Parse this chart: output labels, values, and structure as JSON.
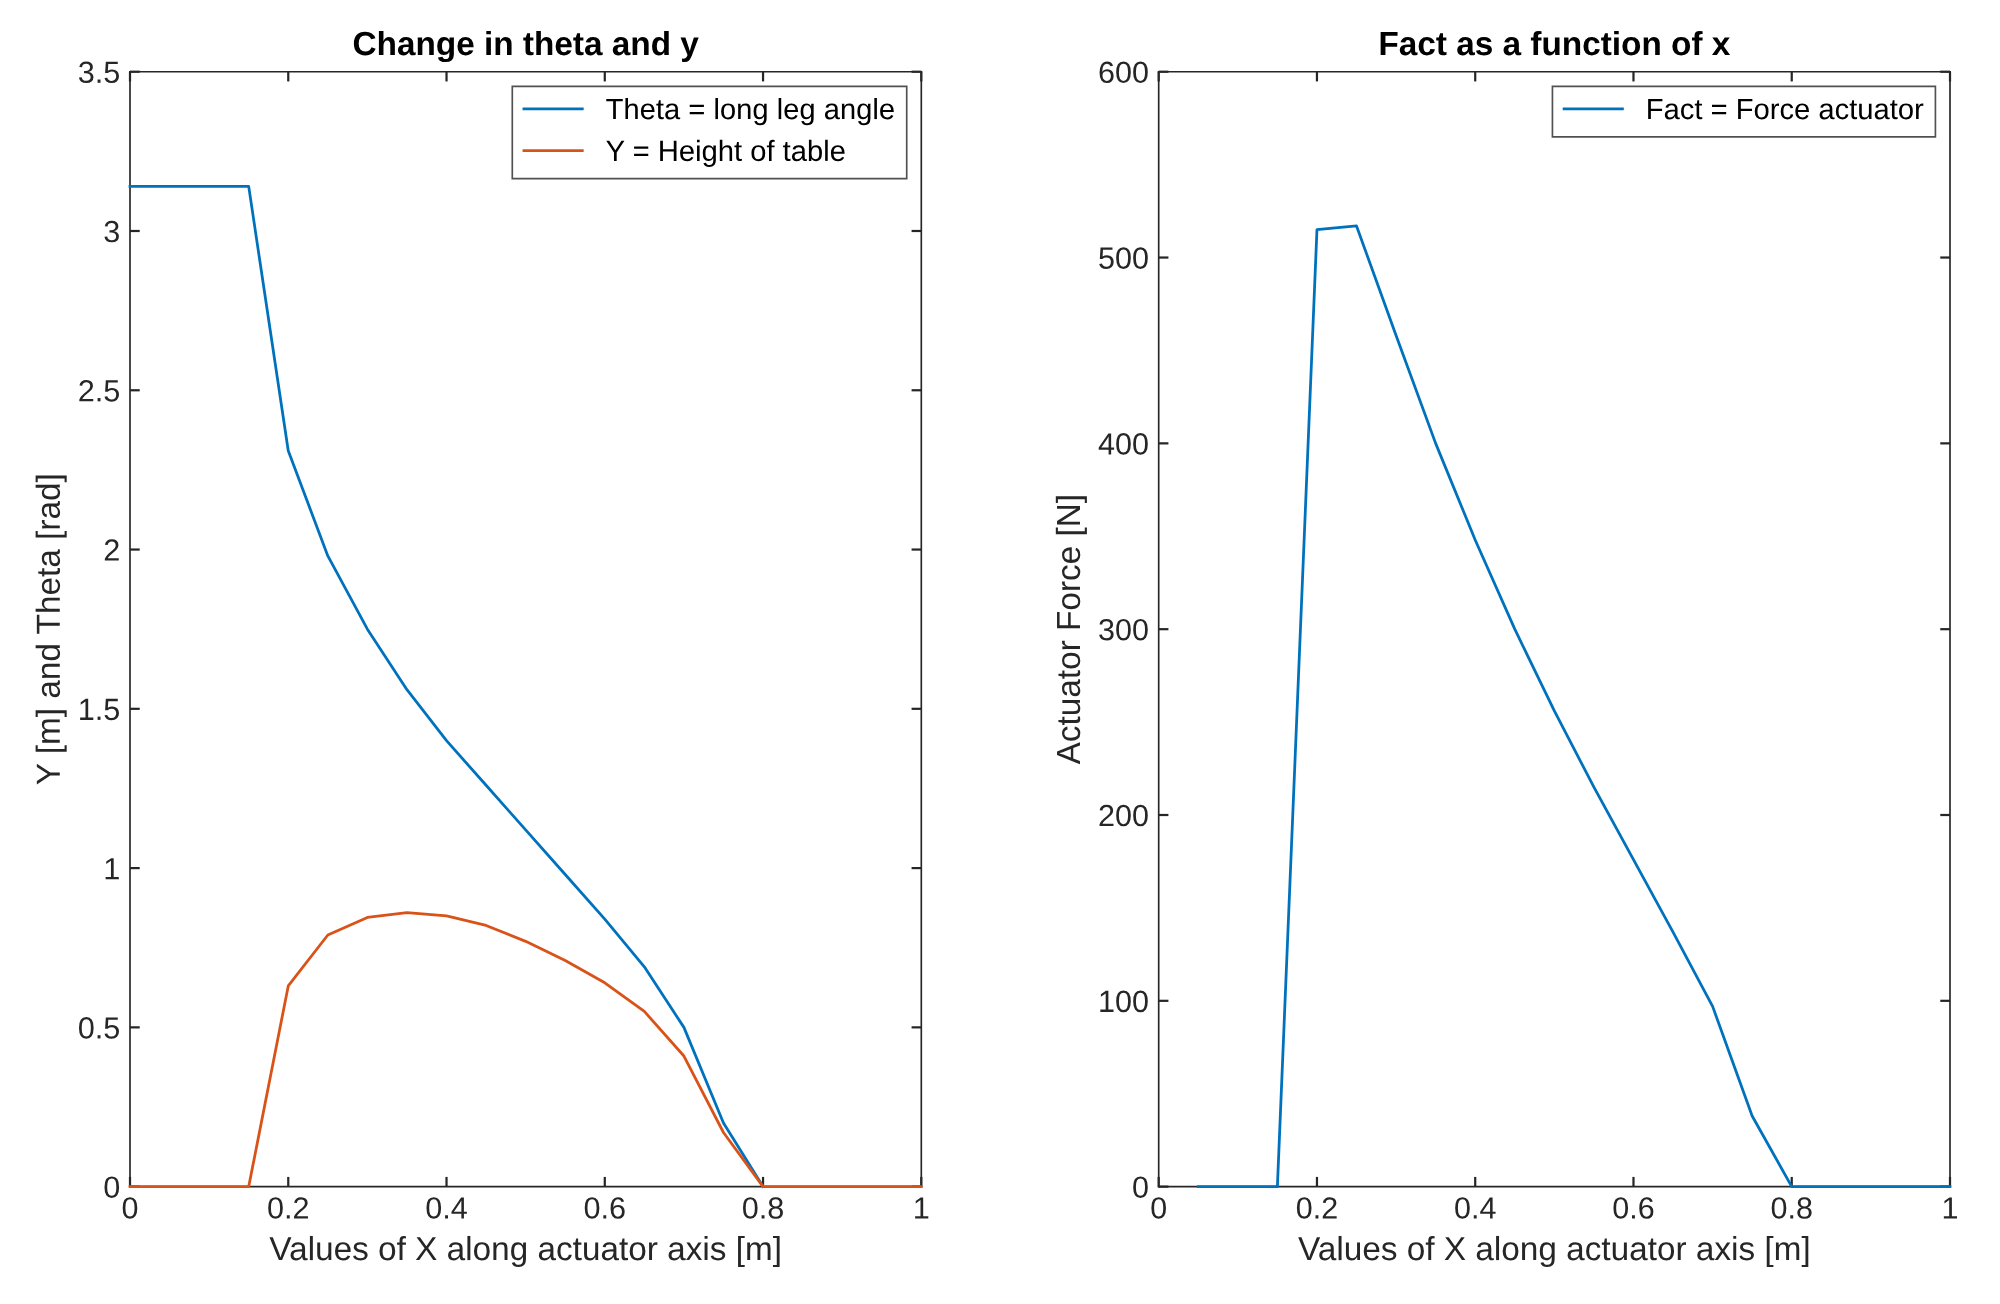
{
  "chart_data": [
    {
      "type": "line",
      "title": "Change in theta and y",
      "xlabel": "Values of X along actuator axis [m]",
      "ylabel": "Y [m] and Theta [rad]",
      "x": [
        0,
        0.05,
        0.1,
        0.15,
        0.2,
        0.25,
        0.3,
        0.35,
        0.4,
        0.45,
        0.5,
        0.55,
        0.6,
        0.65,
        0.7,
        0.75,
        0.8,
        0.85,
        0.9,
        0.95,
        1
      ],
      "series": [
        {
          "name": "Theta = long leg angle",
          "color": "#0072bd",
          "values": [
            3.14,
            3.14,
            3.14,
            3.14,
            2.31,
            1.98,
            1.75,
            1.56,
            1.4,
            1.26,
            1.12,
            0.98,
            0.84,
            0.69,
            0.5,
            0.2,
            0,
            null,
            null,
            null,
            null
          ]
        },
        {
          "name": "Y = Height of table",
          "color": "#d95319",
          "values": [
            0,
            0,
            0,
            0,
            0.63,
            0.79,
            0.845,
            0.86,
            0.85,
            0.82,
            0.77,
            0.71,
            0.64,
            0.55,
            0.41,
            0.17,
            0,
            0,
            0,
            0,
            0
          ]
        }
      ],
      "xlim": [
        0,
        1
      ],
      "xticks": [
        0,
        0.2,
        0.4,
        0.6,
        0.8,
        1
      ],
      "ylim": [
        0,
        3.5
      ],
      "yticks": [
        0,
        0.5,
        1,
        1.5,
        2,
        2.5,
        3,
        3.5
      ],
      "legend": "top right",
      "grid": false
    },
    {
      "type": "line",
      "title": "Fact as a function of x",
      "xlabel": "Values of X along actuator axis [m]",
      "ylabel": "Actuator Force [N]",
      "x": [
        0.05,
        0.1,
        0.15,
        0.2,
        0.25,
        0.3,
        0.35,
        0.4,
        0.45,
        0.5,
        0.55,
        0.6,
        0.65,
        0.7,
        0.75,
        0.8,
        0.85,
        0.9,
        0.95,
        1
      ],
      "series": [
        {
          "name": "Fact = Force actuator",
          "color": "#0072bd",
          "values": [
            0,
            0,
            0,
            515,
            517,
            458,
            400,
            348,
            300,
            256,
            215,
            176,
            137,
            97,
            38,
            0,
            0,
            0,
            0,
            0
          ]
        }
      ],
      "xlim": [
        0,
        1
      ],
      "xticks": [
        0,
        0.2,
        0.4,
        0.6,
        0.8,
        1
      ],
      "ylim": [
        0,
        600
      ],
      "yticks": [
        0,
        100,
        200,
        300,
        400,
        500,
        600
      ],
      "legend": "top right",
      "grid": false
    }
  ]
}
